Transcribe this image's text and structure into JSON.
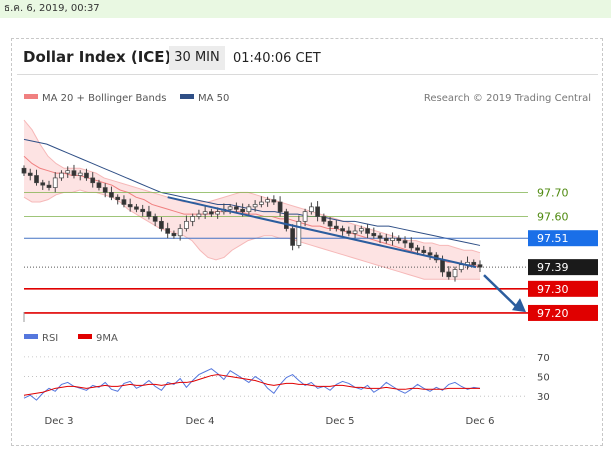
{
  "timestamp": "ธ.ค. 6, 2019, 00:37",
  "header": {
    "title": "Dollar Index (ICE)",
    "interval": "30 MIN",
    "time": "01:40:06 CET"
  },
  "colors": {
    "bollinger": "#f08080",
    "bollinger_fill": "#fde3e3",
    "ma50": "#2f4f86",
    "support": "#e00000",
    "resistance": "#7fb24d",
    "current": "#4472c4",
    "current_label_bg": "#1a6fe8",
    "price_label_bg": "#1a1a1a",
    "arrow": "#2b5d9e",
    "rsi": "#5577dd",
    "rsi_ma": "#e00000",
    "up_candle": "#9b9b9b",
    "down_candle": "#333333"
  },
  "chart_data": [
    {
      "type": "candlestick",
      "title": "Dollar Index (ICE)",
      "legend": [
        {
          "name": "MA 20 + Bollinger Bands",
          "color": "#f08080"
        },
        {
          "name": "MA 50",
          "color": "#2f4f86"
        }
      ],
      "watermark": "Research © 2019 Trading Central",
      "x_labels": [
        "Dec 3",
        "Dec 4",
        "Dec 5",
        "Dec 6"
      ],
      "ylim": [
        97.15,
        98.05
      ],
      "price_levels": [
        {
          "value": 97.7,
          "label": "97.70",
          "kind": "resistance"
        },
        {
          "value": 97.6,
          "label": "97.60",
          "kind": "resistance"
        },
        {
          "value": 97.51,
          "label": "97.51",
          "kind": "current-line"
        },
        {
          "value": 97.39,
          "label": "97.39",
          "kind": "last-price"
        },
        {
          "value": 97.3,
          "label": "97.30",
          "kind": "support"
        },
        {
          "value": 97.2,
          "label": "97.20",
          "kind": "support"
        }
      ],
      "close": [
        97.78,
        97.77,
        97.74,
        97.73,
        97.72,
        97.76,
        97.78,
        97.79,
        97.77,
        97.78,
        97.76,
        97.74,
        97.72,
        97.7,
        97.68,
        97.67,
        97.65,
        97.64,
        97.63,
        97.62,
        97.6,
        97.58,
        97.55,
        97.53,
        97.52,
        97.55,
        97.58,
        97.6,
        97.61,
        97.62,
        97.61,
        97.62,
        97.63,
        97.64,
        97.63,
        97.62,
        97.64,
        97.65,
        97.66,
        97.67,
        97.66,
        97.62,
        97.55,
        97.48,
        97.58,
        97.62,
        97.64,
        97.6,
        97.58,
        97.56,
        97.55,
        97.54,
        97.53,
        97.54,
        97.55,
        97.53,
        97.52,
        97.51,
        97.5,
        97.51,
        97.5,
        97.49,
        97.47,
        97.46,
        97.45,
        97.44,
        97.42,
        97.37,
        97.35,
        97.38,
        97.4,
        97.41,
        97.4,
        97.39
      ],
      "ma20": [
        97.85,
        97.82,
        97.8,
        97.79,
        97.78,
        97.78,
        97.77,
        97.77,
        97.76,
        97.75,
        97.74,
        97.73,
        97.71,
        97.7,
        97.68,
        97.67,
        97.65,
        97.64,
        97.63,
        97.62,
        97.61,
        97.61,
        97.61,
        97.61,
        97.62,
        97.62,
        97.62,
        97.62,
        97.61,
        97.61,
        97.6,
        97.6,
        97.59,
        97.59,
        97.58,
        97.57,
        97.56,
        97.56,
        97.55,
        97.55,
        97.54,
        97.53,
        97.52,
        97.51,
        97.5,
        97.49,
        97.48,
        97.47,
        97.46,
        97.45,
        97.44,
        97.43,
        97.42,
        97.41,
        97.41,
        97.4,
        97.4,
        97.39
      ],
      "bb_upper": [
        98.0,
        97.96,
        97.9,
        97.85,
        97.82,
        97.8,
        97.8,
        97.8,
        97.79,
        97.78,
        97.76,
        97.75,
        97.74,
        97.73,
        97.72,
        97.71,
        97.7,
        97.69,
        97.68,
        97.67,
        97.66,
        97.66,
        97.66,
        97.66,
        97.67,
        97.68,
        97.69,
        97.7,
        97.7,
        97.69,
        97.68,
        97.67,
        97.66,
        97.65,
        97.64,
        97.63,
        97.62,
        97.61,
        97.6,
        97.59,
        97.58,
        97.57,
        97.56,
        97.55,
        97.54,
        97.53,
        97.52,
        97.51,
        97.5,
        97.5,
        97.49,
        97.49,
        97.48,
        97.48,
        97.47,
        97.46,
        97.46,
        97.45
      ],
      "bb_lower": [
        97.68,
        97.66,
        97.66,
        97.67,
        97.69,
        97.7,
        97.7,
        97.71,
        97.7,
        97.7,
        97.69,
        97.68,
        97.66,
        97.63,
        97.61,
        97.59,
        97.57,
        97.55,
        97.54,
        97.53,
        97.52,
        97.5,
        97.46,
        97.43,
        97.42,
        97.43,
        97.46,
        97.48,
        97.5,
        97.51,
        97.52,
        97.52,
        97.51,
        97.51,
        97.5,
        97.49,
        97.48,
        97.47,
        97.46,
        97.45,
        97.44,
        97.43,
        97.42,
        97.41,
        97.4,
        97.39,
        97.38,
        97.37,
        97.36,
        97.35,
        97.34,
        97.34,
        97.34,
        97.34,
        97.34,
        97.34,
        97.34,
        97.34
      ],
      "ma50": [
        97.92,
        97.91,
        97.9,
        97.88,
        97.86,
        97.84,
        97.82,
        97.8,
        97.78,
        97.76,
        97.74,
        97.72,
        97.7,
        97.69,
        97.68,
        97.67,
        97.66,
        97.65,
        97.65,
        97.64,
        97.63,
        97.62,
        97.62,
        97.61,
        97.61,
        97.6,
        97.6,
        97.59,
        97.58,
        97.58,
        97.57,
        97.56,
        97.56,
        97.55,
        97.54,
        97.53,
        97.52,
        97.51,
        97.5,
        97.49,
        97.48
      ],
      "trendline": [
        [
          97.68,
          97.39
        ]
      ]
    },
    {
      "type": "line",
      "title": "RSI",
      "legend": [
        {
          "name": "RSI",
          "color": "#5577dd"
        },
        {
          "name": "9MA",
          "color": "#e00000"
        }
      ],
      "y_ticks": [
        70,
        50,
        30
      ],
      "ylim": [
        20,
        75
      ],
      "series": [
        {
          "name": "RSI",
          "values": [
            28,
            31,
            26,
            33,
            38,
            35,
            42,
            44,
            40,
            38,
            36,
            41,
            39,
            44,
            37,
            35,
            43,
            45,
            38,
            41,
            46,
            40,
            36,
            44,
            42,
            48,
            39,
            46,
            52,
            55,
            58,
            53,
            47,
            56,
            52,
            48,
            44,
            50,
            46,
            38,
            33,
            42,
            49,
            52,
            46,
            41,
            44,
            38,
            40,
            36,
            42,
            45,
            43,
            39,
            37,
            41,
            34,
            38,
            44,
            40,
            36,
            33,
            37,
            42,
            38,
            35,
            39,
            36,
            42,
            44,
            40,
            37,
            39,
            38
          ]
        },
        {
          "name": "9MA",
          "values": [
            31,
            32,
            33,
            34,
            36,
            38,
            39,
            40,
            40,
            39,
            38,
            39,
            40,
            41,
            40,
            40,
            41,
            42,
            41,
            41,
            42,
            42,
            41,
            42,
            43,
            44,
            44,
            45,
            47,
            49,
            51,
            52,
            51,
            50,
            49,
            48,
            47,
            46,
            44,
            42,
            41,
            42,
            43,
            43,
            42,
            42,
            41,
            40,
            40,
            40,
            41,
            41,
            40,
            39,
            39,
            38,
            38,
            38,
            39,
            38,
            37,
            37,
            38,
            38,
            37,
            37,
            37,
            37,
            38,
            38,
            38,
            38,
            38,
            38
          ]
        }
      ]
    }
  ]
}
